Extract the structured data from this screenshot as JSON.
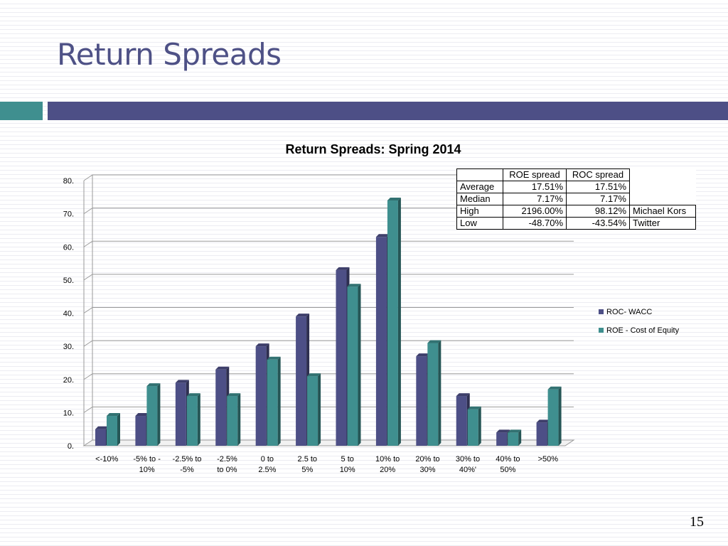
{
  "slide": {
    "title": "Return Spreads",
    "page_number": "15",
    "accent_colors": {
      "teal": "#3f8f8f",
      "navy": "#4d4f86",
      "title": "#4e5186"
    }
  },
  "stats_table": {
    "headers": [
      "",
      "ROE spread",
      "ROC spread",
      ""
    ],
    "rows": [
      {
        "label": "Average",
        "roe": "17.51%",
        "roc": "17.51%",
        "note": ""
      },
      {
        "label": "Median",
        "roe": "7.17%",
        "roc": "7.17%",
        "note": ""
      },
      {
        "label": "High",
        "roe": "2196.00%",
        "roc": "98.12%",
        "note": "Michael Kors"
      },
      {
        "label": "Low",
        "roe": "-48.70%",
        "roc": "-43.54%",
        "note": "Twitter"
      }
    ]
  },
  "chart_data": {
    "type": "bar",
    "title": "Return Spreads: Spring 2014",
    "xlabel": "",
    "ylabel": "",
    "ylim": [
      0,
      80
    ],
    "yticks": [
      "0.",
      "10.",
      "20.",
      "30.",
      "40.",
      "50.",
      "60.",
      "70.",
      "80."
    ],
    "grid": true,
    "legend_position": "right",
    "categories": [
      [
        "<-10%"
      ],
      [
        "-5% to -",
        "10%"
      ],
      [
        "-2.5% to",
        "-5%"
      ],
      [
        "-2.5%",
        "to 0%"
      ],
      [
        "0 to",
        "2.5%"
      ],
      [
        "2.5 to",
        "5%"
      ],
      [
        "5 to",
        "10%"
      ],
      [
        "10% to",
        "20%"
      ],
      [
        "20% to",
        "30%"
      ],
      [
        "30% to",
        "40%'"
      ],
      [
        "40% to",
        "50%"
      ],
      [
        ">50%"
      ]
    ],
    "series": [
      {
        "name": "ROC- WACC",
        "color": "#4d4f86",
        "values": [
          5,
          9,
          19,
          23,
          30,
          39,
          53,
          63,
          27,
          15,
          4,
          7
        ]
      },
      {
        "name": "ROE - Cost of Equity",
        "color": "#3f8f8f",
        "values": [
          9,
          18,
          15,
          15,
          26,
          21,
          48,
          74,
          31,
          11,
          4,
          17
        ]
      }
    ]
  }
}
